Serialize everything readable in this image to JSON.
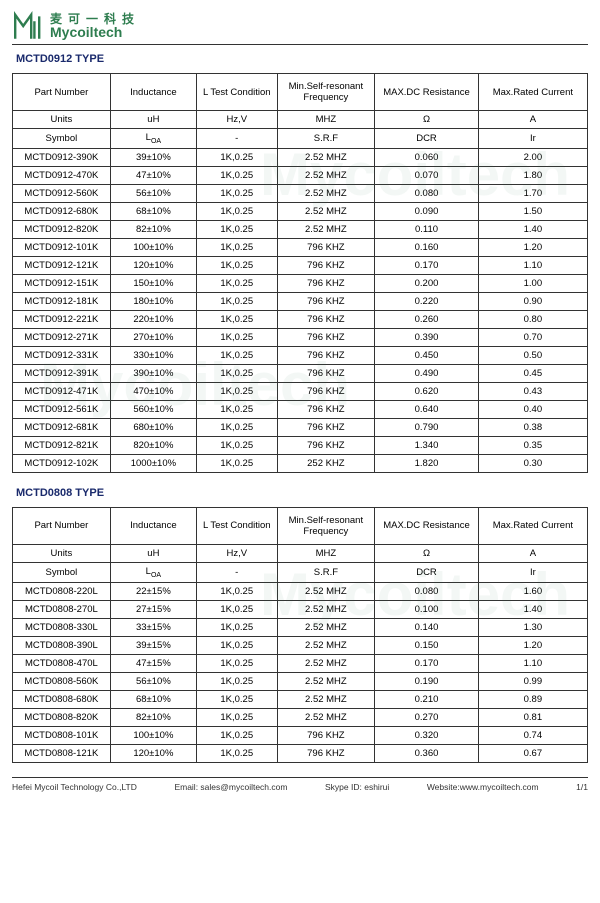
{
  "header": {
    "chinese": "麦可一科技",
    "english": "Mycoiltech",
    "logo_color": "#2e7d4f"
  },
  "section1": {
    "title": "MCTD0912 TYPE",
    "columns": [
      "Part Number",
      "Inductance",
      "L Test Condition",
      "Min.Self-resonant Frequency",
      "MAX.DC Resistance",
      "Max.Rated Current"
    ],
    "units_label": "Units",
    "units": [
      "uH",
      "Hz,V",
      "MHZ",
      "Ω",
      "A"
    ],
    "symbol_label": "Symbol",
    "symbols": [
      "L",
      "-",
      "S.R.F",
      "DCR",
      "Ir"
    ],
    "symbol_sub": "OA",
    "rows": [
      {
        "pn": "MCTD0912-390K",
        "l": "39±10%",
        "cond": "1K,0.25",
        "srf": "2.52 MHZ",
        "dcr": "0.060",
        "ir": "2.00"
      },
      {
        "pn": "MCTD0912-470K",
        "l": "47±10%",
        "cond": "1K,0.25",
        "srf": "2.52 MHZ",
        "dcr": "0.070",
        "ir": "1.80"
      },
      {
        "pn": "MCTD0912-560K",
        "l": "56±10%",
        "cond": "1K,0.25",
        "srf": "2.52 MHZ",
        "dcr": "0.080",
        "ir": "1.70"
      },
      {
        "pn": "MCTD0912-680K",
        "l": "68±10%",
        "cond": "1K,0.25",
        "srf": "2.52 MHZ",
        "dcr": "0.090",
        "ir": "1.50"
      },
      {
        "pn": "MCTD0912-820K",
        "l": "82±10%",
        "cond": "1K,0.25",
        "srf": "2.52 MHZ",
        "dcr": "0.110",
        "ir": "1.40"
      },
      {
        "pn": "MCTD0912-101K",
        "l": "100±10%",
        "cond": "1K,0.25",
        "srf": "796 KHZ",
        "dcr": "0.160",
        "ir": "1.20"
      },
      {
        "pn": "MCTD0912-121K",
        "l": "120±10%",
        "cond": "1K,0.25",
        "srf": "796 KHZ",
        "dcr": "0.170",
        "ir": "1.10"
      },
      {
        "pn": "MCTD0912-151K",
        "l": "150±10%",
        "cond": "1K,0.25",
        "srf": "796 KHZ",
        "dcr": "0.200",
        "ir": "1.00"
      },
      {
        "pn": "MCTD0912-181K",
        "l": "180±10%",
        "cond": "1K,0.25",
        "srf": "796 KHZ",
        "dcr": "0.220",
        "ir": "0.90"
      },
      {
        "pn": "MCTD0912-221K",
        "l": "220±10%",
        "cond": "1K,0.25",
        "srf": "796 KHZ",
        "dcr": "0.260",
        "ir": "0.80"
      },
      {
        "pn": "MCTD0912-271K",
        "l": "270±10%",
        "cond": "1K,0.25",
        "srf": "796 KHZ",
        "dcr": "0.390",
        "ir": "0.70"
      },
      {
        "pn": "MCTD0912-331K",
        "l": "330±10%",
        "cond": "1K,0.25",
        "srf": "796 KHZ",
        "dcr": "0.450",
        "ir": "0.50"
      },
      {
        "pn": "MCTD0912-391K",
        "l": "390±10%",
        "cond": "1K,0.25",
        "srf": "796 KHZ",
        "dcr": "0.490",
        "ir": "0.45"
      },
      {
        "pn": "MCTD0912-471K",
        "l": "470±10%",
        "cond": "1K,0.25",
        "srf": "796 KHZ",
        "dcr": "0.620",
        "ir": "0.43"
      },
      {
        "pn": "MCTD0912-561K",
        "l": "560±10%",
        "cond": "1K,0.25",
        "srf": "796 KHZ",
        "dcr": "0.640",
        "ir": "0.40"
      },
      {
        "pn": "MCTD0912-681K",
        "l": "680±10%",
        "cond": "1K,0.25",
        "srf": "796 KHZ",
        "dcr": "0.790",
        "ir": "0.38"
      },
      {
        "pn": "MCTD0912-821K",
        "l": "820±10%",
        "cond": "1K,0.25",
        "srf": "796 KHZ",
        "dcr": "1.340",
        "ir": "0.35"
      },
      {
        "pn": "MCTD0912-102K",
        "l": "1000±10%",
        "cond": "1K,0.25",
        "srf": "252 KHZ",
        "dcr": "1.820",
        "ir": "0.30"
      }
    ]
  },
  "section2": {
    "title": "MCTD0808 TYPE",
    "columns": [
      "Part Number",
      "Inductance",
      "L Test Condition",
      "Min.Self-resonant Frequency",
      "MAX.DC Resistance",
      "Max.Rated Current"
    ],
    "units_label": "Units",
    "units": [
      "uH",
      "Hz,V",
      "MHZ",
      "Ω",
      "A"
    ],
    "symbol_label": "Symbol",
    "symbols": [
      "L",
      "-",
      "S.R.F",
      "DCR",
      "Ir"
    ],
    "symbol_sub": "OA",
    "rows": [
      {
        "pn": "MCTD0808-220L",
        "l": "22±15%",
        "cond": "1K,0.25",
        "srf": "2.52 MHZ",
        "dcr": "0.080",
        "ir": "1.60"
      },
      {
        "pn": "MCTD0808-270L",
        "l": "27±15%",
        "cond": "1K,0.25",
        "srf": "2.52 MHZ",
        "dcr": "0.100",
        "ir": "1.40"
      },
      {
        "pn": "MCTD0808-330L",
        "l": "33±15%",
        "cond": "1K,0.25",
        "srf": "2.52 MHZ",
        "dcr": "0.140",
        "ir": "1.30"
      },
      {
        "pn": "MCTD0808-390L",
        "l": "39±15%",
        "cond": "1K,0.25",
        "srf": "2.52 MHZ",
        "dcr": "0.150",
        "ir": "1.20"
      },
      {
        "pn": "MCTD0808-470L",
        "l": "47±15%",
        "cond": "1K,0.25",
        "srf": "2.52 MHZ",
        "dcr": "0.170",
        "ir": "1.10"
      },
      {
        "pn": "MCTD0808-560K",
        "l": "56±10%",
        "cond": "1K,0.25",
        "srf": "2.52 MHZ",
        "dcr": "0.190",
        "ir": "0.99"
      },
      {
        "pn": "MCTD0808-680K",
        "l": "68±10%",
        "cond": "1K,0.25",
        "srf": "2.52 MHZ",
        "dcr": "0.210",
        "ir": "0.89"
      },
      {
        "pn": "MCTD0808-820K",
        "l": "82±10%",
        "cond": "1K,0.25",
        "srf": "2.52 MHZ",
        "dcr": "0.270",
        "ir": "0.81"
      },
      {
        "pn": "MCTD0808-101K",
        "l": "100±10%",
        "cond": "1K,0.25",
        "srf": "796 KHZ",
        "dcr": "0.320",
        "ir": "0.74"
      },
      {
        "pn": "MCTD0808-121K",
        "l": "120±10%",
        "cond": "1K,0.25",
        "srf": "796 KHZ",
        "dcr": "0.360",
        "ir": "0.67"
      }
    ]
  },
  "footer": {
    "company": "Hefei Mycoil Technology Co.,LTD",
    "email_label": "Email: sales@mycoiltech.com",
    "skype_label": "Skype ID: eshirui",
    "website_label": "Website:www.mycoiltech.com",
    "page": "1/1"
  }
}
